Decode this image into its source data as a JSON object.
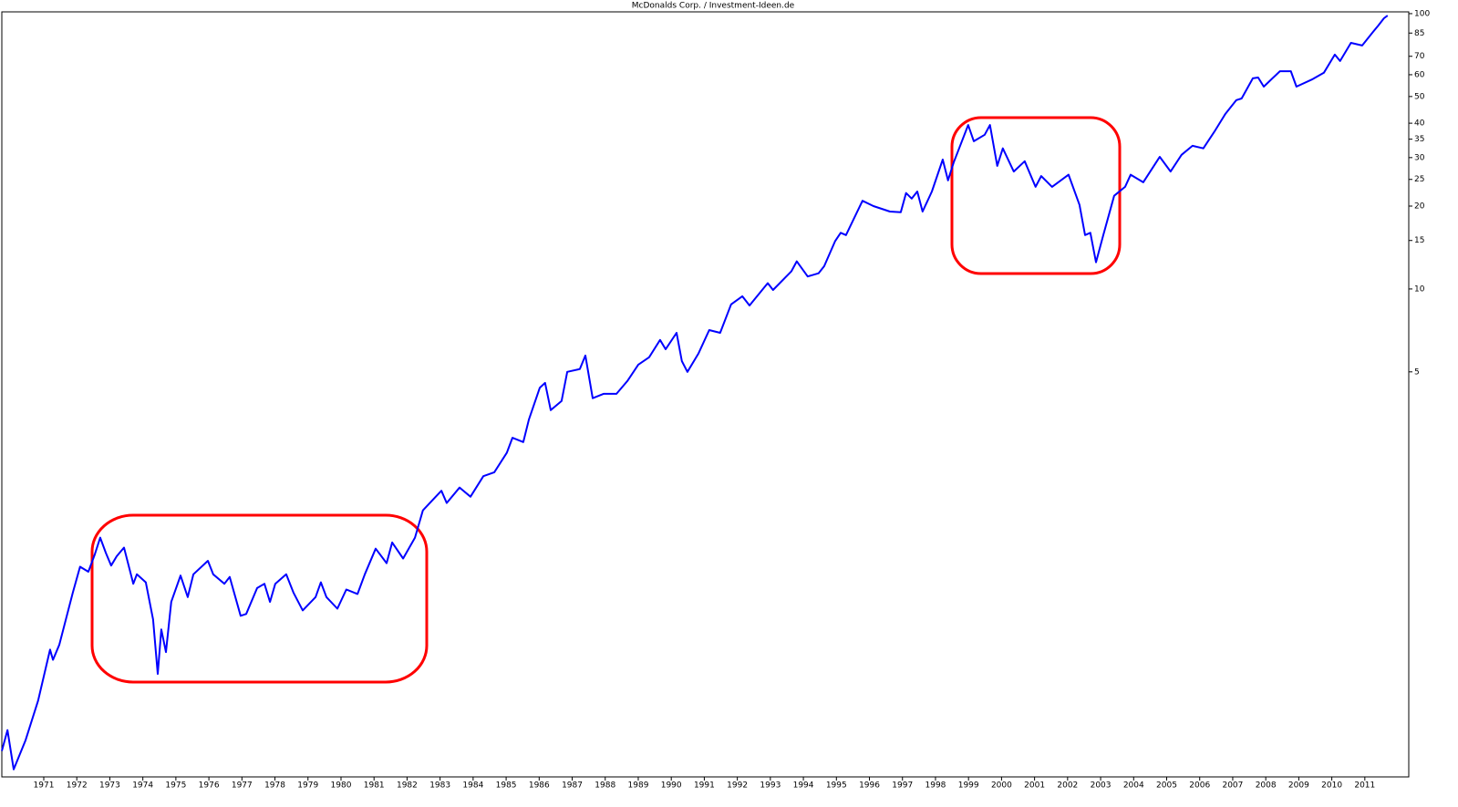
{
  "chart_data": {
    "type": "line",
    "title": "McDonalds Corp. /  Investment-Ideen.de",
    "log_scale": true,
    "color": "#0000ff",
    "x": [
      1970.23,
      1970.4,
      1970.59,
      1970.95,
      1971.33,
      1971.69,
      1971.78,
      1971.97,
      1972.38,
      1972.6,
      1972.85,
      1973.05,
      1973.21,
      1973.38,
      1973.54,
      1973.71,
      1973.93,
      1974.21,
      1974.32,
      1974.59,
      1974.81,
      1974.95,
      1975.06,
      1975.2,
      1975.36,
      1975.64,
      1975.86,
      1976.03,
      1976.47,
      1976.63,
      1976.97,
      1977.13,
      1977.46,
      1977.63,
      1977.96,
      1978.18,
      1978.35,
      1978.51,
      1978.84,
      1979.06,
      1979.34,
      1979.73,
      1979.89,
      1980.06,
      1980.39,
      1980.66,
      1981.0,
      1981.22,
      1981.55,
      1981.88,
      1982.05,
      1982.38,
      1982.74,
      1982.98,
      1983.37,
      1983.54,
      1983.7,
      1984.09,
      1984.42,
      1984.81,
      1985.14,
      1985.52,
      1985.69,
      1986.02,
      1986.19,
      1986.52,
      1986.68,
      1986.85,
      1987.18,
      1987.35,
      1987.73,
      1987.9,
      1988.12,
      1988.45,
      1988.84,
      1989.17,
      1989.5,
      1989.83,
      1990.16,
      1990.33,
      1990.66,
      1990.82,
      1990.99,
      1991.32,
      1991.65,
      1991.98,
      1992.31,
      1992.65,
      1992.87,
      1993.42,
      1993.58,
      1994.14,
      1994.3,
      1994.63,
      1994.96,
      1995.13,
      1995.46,
      1995.63,
      1995.79,
      1996.29,
      1996.62,
      1997.12,
      1997.45,
      1997.61,
      1997.78,
      1997.95,
      1998.11,
      1998.39,
      1998.72,
      1998.88,
      1999.05,
      1999.49,
      1999.66,
      1999.99,
      2000.15,
      2000.37,
      2000.54,
      2000.87,
      2001.2,
      2001.53,
      2001.7,
      2002.03,
      2002.53,
      2002.86,
      2003.03,
      2003.19,
      2003.36,
      2003.58,
      2003.91,
      2004.24,
      2004.41,
      2004.79,
      2005.29,
      2005.62,
      2005.95,
      2006.28,
      2006.61,
      2006.94,
      2007.28,
      2007.61,
      2007.77,
      2008.11,
      2008.27,
      2008.44,
      2008.93,
      2009.26,
      2009.43,
      2009.92,
      2010.26,
      2010.59,
      2010.75,
      2011.08,
      2011.42,
      2011.75,
      2011.91,
      2012.08,
      2012.19
    ],
    "values": [
      0.21,
      0.25,
      0.18,
      0.23,
      0.32,
      0.49,
      0.45,
      0.51,
      0.79,
      0.98,
      0.94,
      1.09,
      1.25,
      1.1,
      0.99,
      1.07,
      1.15,
      0.85,
      0.92,
      0.86,
      0.63,
      0.4,
      0.58,
      0.48,
      0.73,
      0.91,
      0.76,
      0.92,
      1.03,
      0.92,
      0.85,
      0.9,
      0.65,
      0.66,
      0.82,
      0.85,
      0.73,
      0.85,
      0.92,
      0.79,
      0.68,
      0.76,
      0.86,
      0.76,
      0.69,
      0.81,
      0.78,
      0.92,
      1.14,
      1.01,
      1.2,
      1.05,
      1.25,
      1.57,
      1.76,
      1.85,
      1.67,
      1.9,
      1.76,
      2.09,
      2.16,
      2.54,
      2.88,
      2.78,
      3.36,
      4.38,
      4.56,
      3.63,
      3.92,
      5.0,
      5.12,
      5.73,
      4.01,
      4.16,
      4.16,
      4.63,
      5.31,
      5.65,
      6.53,
      6.04,
      6.93,
      5.47,
      5.0,
      5.82,
      7.09,
      6.93,
      8.79,
      9.41,
      8.71,
      10.5,
      9.92,
      11.6,
      12.6,
      11.1,
      11.4,
      12.1,
      14.9,
      16.0,
      15.7,
      20.9,
      20.0,
      19.1,
      19.0,
      22.3,
      21.3,
      22.6,
      19.1,
      22.6,
      29.5,
      24.8,
      28.8,
      39.4,
      34.4,
      36.3,
      39.4,
      28.0,
      32.4,
      26.7,
      29.1,
      23.5,
      25.7,
      23.5,
      26.0,
      20.2,
      15.7,
      16.0,
      12.5,
      15.7,
      21.8,
      23.5,
      26.0,
      24.4,
      30.2,
      26.7,
      30.7,
      33.1,
      32.4,
      37.2,
      43.3,
      48.5,
      49.2,
      58.2,
      58.6,
      54.3,
      61.8,
      61.8,
      54.3,
      57.8,
      61.0,
      71.0,
      67.3,
      78.3,
      76.6,
      85.9,
      90.6,
      96.2,
      98.4
    ],
    "xlim": [
      1970.23,
      2012.83
    ],
    "xticks": [
      {
        "value": 1971.5,
        "label": "1971"
      },
      {
        "value": 1972.5,
        "label": "1972"
      },
      {
        "value": 1973.5,
        "label": "1973"
      },
      {
        "value": 1974.5,
        "label": "1974"
      },
      {
        "value": 1975.5,
        "label": "1975"
      },
      {
        "value": 1976.5,
        "label": "1976"
      },
      {
        "value": 1977.5,
        "label": "1977"
      },
      {
        "value": 1978.5,
        "label": "1978"
      },
      {
        "value": 1979.5,
        "label": "1979"
      },
      {
        "value": 1980.5,
        "label": "1980"
      },
      {
        "value": 1981.5,
        "label": "1981"
      },
      {
        "value": 1982.5,
        "label": "1982"
      },
      {
        "value": 1983.5,
        "label": "1983"
      },
      {
        "value": 1984.5,
        "label": "1984"
      },
      {
        "value": 1985.5,
        "label": "1985"
      },
      {
        "value": 1986.5,
        "label": "1986"
      },
      {
        "value": 1987.5,
        "label": "1987"
      },
      {
        "value": 1988.5,
        "label": "1988"
      },
      {
        "value": 1989.5,
        "label": "1989"
      },
      {
        "value": 1990.5,
        "label": "1990"
      },
      {
        "value": 1991.5,
        "label": "1991"
      },
      {
        "value": 1992.5,
        "label": "1992"
      },
      {
        "value": 1993.5,
        "label": "1993"
      },
      {
        "value": 1994.5,
        "label": "1994"
      },
      {
        "value": 1995.5,
        "label": "1995"
      },
      {
        "value": 1996.5,
        "label": "1996"
      },
      {
        "value": 1997.5,
        "label": "1997"
      },
      {
        "value": 1998.5,
        "label": "1998"
      },
      {
        "value": 1999.5,
        "label": "1999"
      },
      {
        "value": 2000.5,
        "label": "2000"
      },
      {
        "value": 2001.5,
        "label": "2001"
      },
      {
        "value": 2002.5,
        "label": "2002"
      },
      {
        "value": 2003.5,
        "label": "2003"
      },
      {
        "value": 2004.5,
        "label": "2004"
      },
      {
        "value": 2005.5,
        "label": "2005"
      },
      {
        "value": 2006.5,
        "label": "2006"
      },
      {
        "value": 2007.5,
        "label": "2007"
      },
      {
        "value": 2008.5,
        "label": "2008"
      },
      {
        "value": 2009.5,
        "label": "2009"
      },
      {
        "value": 2010.5,
        "label": "2010"
      },
      {
        "value": 2011.5,
        "label": "2011"
      }
    ],
    "ylim": [
      0.169,
      101.5
    ],
    "yticks": [
      5,
      10,
      15,
      20,
      25,
      30,
      35,
      40,
      50,
      60,
      70,
      85,
      100
    ],
    "grid": false
  }
}
